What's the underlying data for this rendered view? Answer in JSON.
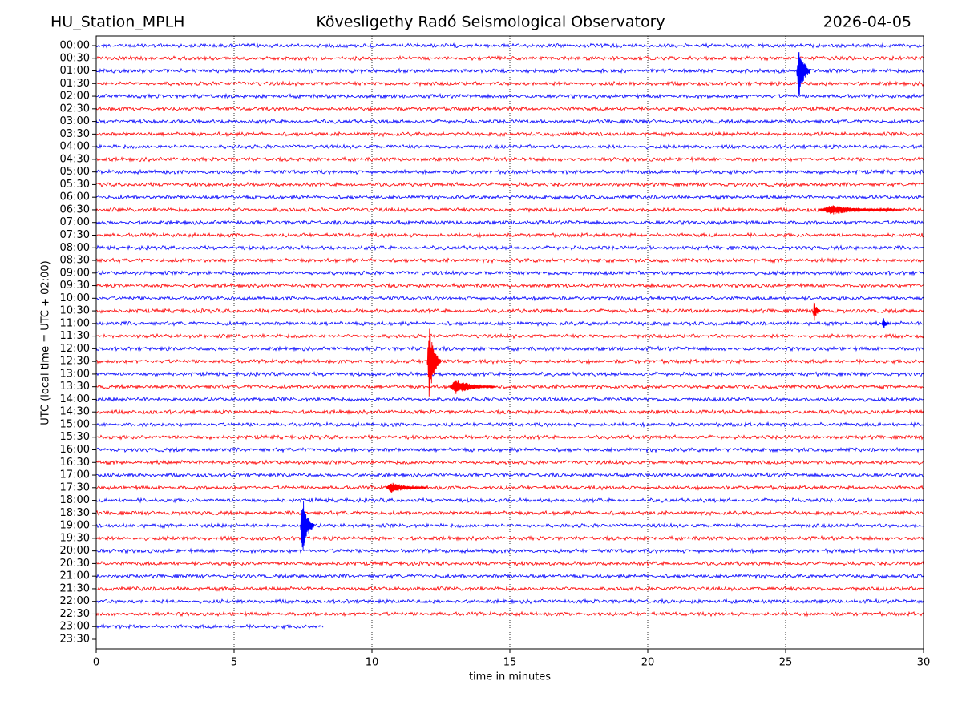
{
  "chart_data": {
    "type": "helicorder",
    "title": "Kövesligethy Radó Seismological Observatory",
    "station": "HU_Station_MPLH",
    "date": "2026-04-05",
    "xlabel": "time in minutes",
    "ylabel": "UTC (local time = UTC + 02:00)",
    "categories": [
      "00:00",
      "00:30",
      "01:00",
      "01:30",
      "02:00",
      "02:30",
      "03:00",
      "03:30",
      "04:00",
      "04:30",
      "05:00",
      "05:30",
      "06:00",
      "06:30",
      "07:00",
      "07:30",
      "08:00",
      "08:30",
      "09:00",
      "09:30",
      "10:00",
      "10:30",
      "11:00",
      "11:30",
      "12:00",
      "12:30",
      "13:00",
      "13:30",
      "14:00",
      "14:30",
      "15:00",
      "15:30",
      "16:00",
      "16:30",
      "17:00",
      "17:30",
      "18:00",
      "18:30",
      "19:00",
      "19:30",
      "20:00",
      "20:30",
      "21:00",
      "21:30",
      "22:00",
      "22:30",
      "23:00",
      "23:30"
    ],
    "x_end": [
      30,
      30,
      30,
      30,
      30,
      30,
      30,
      30,
      30,
      30,
      30,
      30,
      30,
      30,
      30,
      30,
      30,
      30,
      30,
      30,
      30,
      30,
      30,
      30,
      30,
      30,
      30,
      30,
      30,
      30,
      30,
      30,
      30,
      30,
      30,
      30,
      30,
      30,
      30,
      30,
      30,
      30,
      30,
      30,
      30,
      30,
      8.25,
      null
    ],
    "colors": [
      "#0000ff",
      "#ff0000"
    ],
    "events": [
      {
        "row": 2,
        "start": 25.4,
        "end": 25.9,
        "amplitude": 2.2
      },
      {
        "row": 13,
        "start": 26.2,
        "end": 29.2,
        "amplitude": 0.4
      },
      {
        "row": 21,
        "start": 26.0,
        "end": 26.25,
        "amplitude": 1.0
      },
      {
        "row": 22,
        "start": 28.5,
        "end": 28.75,
        "amplitude": 0.6
      },
      {
        "row": 25,
        "start": 12.0,
        "end": 12.5,
        "amplitude": 2.9
      },
      {
        "row": 27,
        "start": 12.8,
        "end": 14.5,
        "amplitude": 0.6
      },
      {
        "row": 35,
        "start": 10.5,
        "end": 12.0,
        "amplitude": 0.45
      },
      {
        "row": 38,
        "start": 7.4,
        "end": 7.9,
        "amplitude": 2.5
      }
    ],
    "xlim": [
      0,
      30
    ],
    "xticks": [
      0,
      5,
      10,
      15,
      20,
      25,
      30
    ],
    "grid": true
  }
}
